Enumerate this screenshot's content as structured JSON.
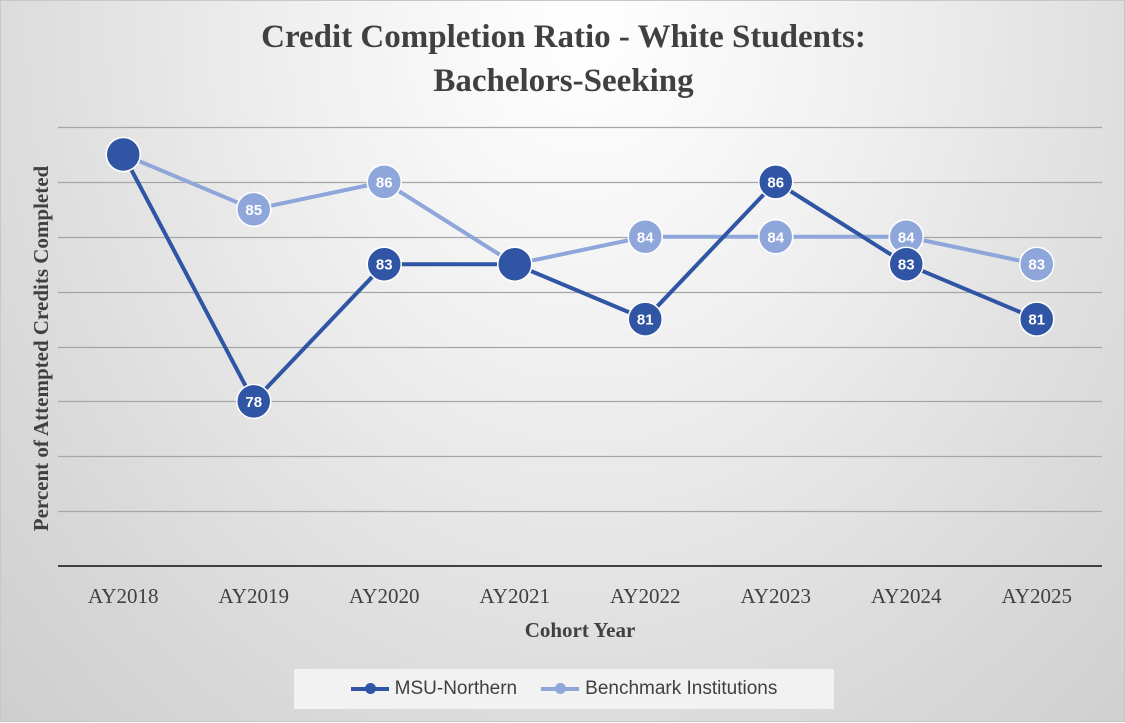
{
  "chart_data": {
    "type": "line",
    "title": [
      "Credit Completion Ratio - White Students:",
      "Bachelors-Seeking"
    ],
    "xlabel": "Cohort Year",
    "ylabel": "Percent of  Attempted Credits Completed",
    "categories": [
      "AY2018",
      "AY2019",
      "AY2020",
      "AY2021",
      "AY2022",
      "AY2023",
      "AY2024",
      "AY2025"
    ],
    "series": [
      {
        "name": "MSU-Northern",
        "color": "#2f55a4",
        "values": [
          87,
          78,
          83,
          83,
          81,
          86,
          83,
          81
        ],
        "labels": [
          "",
          "78",
          "83",
          "",
          "81",
          "86",
          "83",
          "81"
        ]
      },
      {
        "name": "Benchmark Institutions",
        "color": "#8fa6da",
        "values": [
          87,
          85,
          86,
          83,
          84,
          84,
          84,
          83
        ],
        "labels": [
          "87",
          "85",
          "86",
          "83",
          "84",
          "84",
          "84",
          "83"
        ]
      }
    ],
    "ylim": [
      72,
      88
    ],
    "y_gridline_step": 2,
    "y_tick_labels_shown": false,
    "grid": true,
    "legend_position": "bottom"
  }
}
